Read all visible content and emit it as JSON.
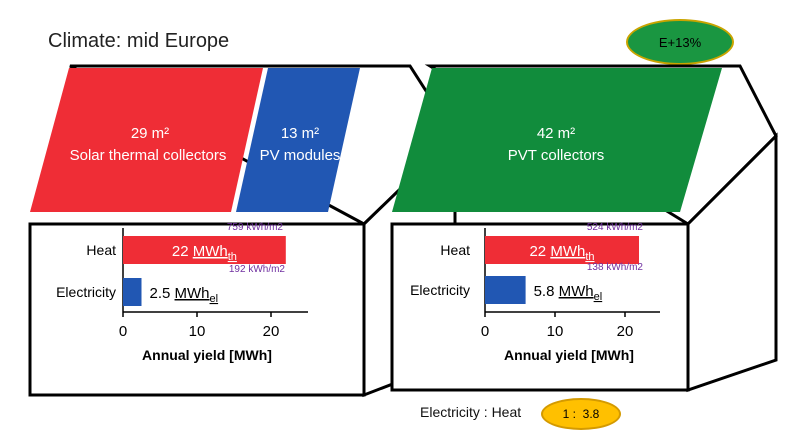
{
  "header": {
    "title": "Climate: mid Europe"
  },
  "badge_energy": "E+13%",
  "ratio": {
    "label": "Electricity : Heat",
    "value": "1 :  3.8"
  },
  "colors": {
    "heat": "#ef2d36",
    "electricity": "#2157b3",
    "pvt": "#118c3c",
    "annot": "#7030a0",
    "badge_green": "#1a9641",
    "badge_yellow": "#ffc000"
  },
  "houses": [
    {
      "roof_panels": [
        {
          "area": "29 m²",
          "name": "Solar thermal collectors",
          "color": "#ef2d36"
        },
        {
          "area": "13 m²",
          "name": "PV modules",
          "color": "#2157b3"
        }
      ],
      "chart_data": {
        "type": "bar",
        "categories": [
          "Heat",
          "Electricity"
        ],
        "values": [
          22,
          2.5
        ],
        "value_labels": [
          {
            "main": "22 MWh",
            "sub": "th"
          },
          {
            "main": "2.5 MWh",
            "sub": "el"
          }
        ],
        "annotations": [
          "759 kWh/m2",
          "192 kWh/m2"
        ],
        "xlabel": "Annual yield [MWh]",
        "xlim": [
          0,
          25
        ],
        "xticks": [
          "0",
          "10",
          "20"
        ],
        "xtick_values": [
          0,
          10,
          20
        ]
      }
    },
    {
      "roof_panels": [
        {
          "area": "42 m²",
          "name": "PVT collectors",
          "color": "#118c3c"
        }
      ],
      "chart_data": {
        "type": "bar",
        "categories": [
          "Heat",
          "Electricity"
        ],
        "values": [
          22,
          5.8
        ],
        "value_labels": [
          {
            "main": "22 MWh",
            "sub": "th"
          },
          {
            "main": "5.8 MWh",
            "sub": "el"
          }
        ],
        "annotations": [
          "524 kWh/m2",
          "138 kWh/m2"
        ],
        "xlabel": "Annual yield [MWh]",
        "xlim": [
          0,
          25
        ],
        "xticks": [
          "0",
          "10",
          "20"
        ],
        "xtick_values": [
          0,
          10,
          20
        ]
      }
    }
  ]
}
